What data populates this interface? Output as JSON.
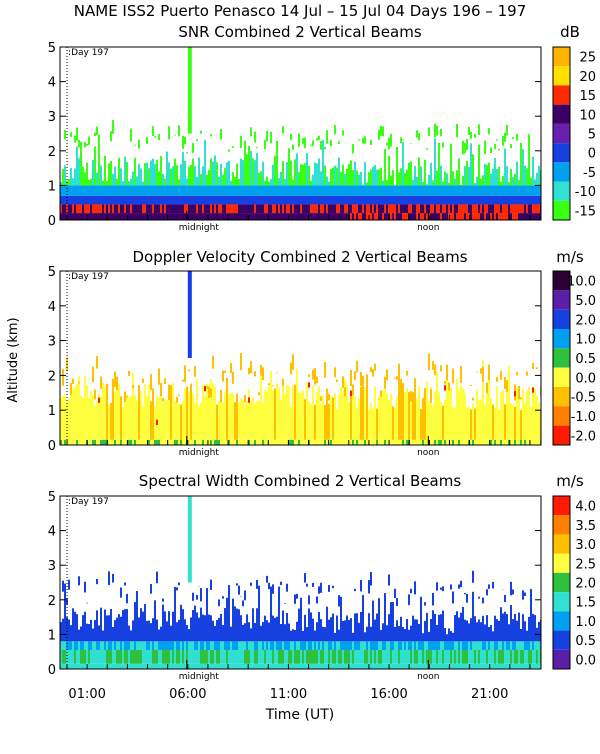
{
  "header": {
    "title": "NAME ISS2 Puerto Penasco  14 Jul – 15 Jul 04 Days 196 – 197"
  },
  "shared_axes": {
    "y_label": "Altitude (km)",
    "y_ticks": [
      "0",
      "1",
      "2",
      "3",
      "4",
      "5"
    ],
    "x_label": "Time (UT)",
    "x_ticks": [
      "01:00",
      "06:00",
      "11:00",
      "16:00",
      "21:00"
    ],
    "day_marker": ":Day 197",
    "midnight_label": "midnight",
    "noon_label": "noon"
  },
  "chart_data": [
    {
      "type": "heatmap",
      "title": "SNR Combined 2 Vertical Beams",
      "unit": "dB",
      "xlabel": "Time (UT)",
      "ylabel": "Altitude (km)",
      "ylim": [
        0,
        5
      ],
      "colorbar_labels": [
        "25",
        "20",
        "15",
        "10",
        "5",
        "0",
        "-5",
        "-10",
        "-15"
      ],
      "colorbar_colors": [
        "#ffb300",
        "#ffe000",
        "#ff2a00",
        "#3b0066",
        "#6a1fb0",
        "#1640e0",
        "#00a0f0",
        "#30e0d0",
        "#39ff14"
      ]
    },
    {
      "type": "heatmap",
      "title": "Doppler Velocity Combined 2 Vertical Beams",
      "unit": "m/s",
      "xlabel": "Time (UT)",
      "ylabel": "Altitude (km)",
      "ylim": [
        0,
        5
      ],
      "colorbar_labels": [
        "10.0",
        "5.0",
        "2.0",
        "1.0",
        "0.5",
        "0.0",
        "-0.5",
        "-1.0",
        "-2.0"
      ],
      "colorbar_colors": [
        "#2b0033",
        "#5a1fa8",
        "#1640e0",
        "#00a0f0",
        "#30c040",
        "#ffff40",
        "#ffc000",
        "#ff8000",
        "#ff1a00"
      ]
    },
    {
      "type": "heatmap",
      "title": "Spectral Width Combined 2 Vertical Beams",
      "unit": "m/s",
      "xlabel": "Time (UT)",
      "ylabel": "Altitude (km)",
      "ylim": [
        0,
        5
      ],
      "colorbar_labels": [
        "4.0",
        "3.5",
        "3.0",
        "2.5",
        "2.0",
        "1.5",
        "1.0",
        "0.5",
        "0.0"
      ],
      "colorbar_colors": [
        "#ff1a00",
        "#ff8000",
        "#ffc000",
        "#ffff40",
        "#30c040",
        "#30e0d0",
        "#00a0f0",
        "#1640e0",
        "#5a1fa8"
      ]
    }
  ]
}
